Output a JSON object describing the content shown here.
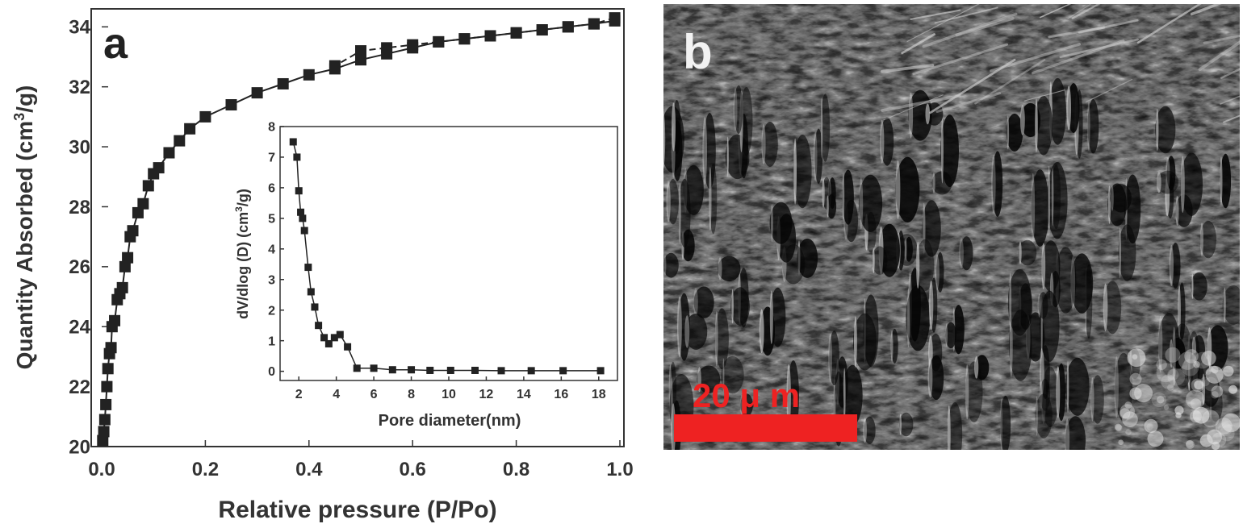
{
  "chart_data": [
    {
      "panel": "a",
      "type": "scatter",
      "xlabel": "Relative pressure (P/Po)",
      "ylabel": "Quantity Absorbed (cm3/g)",
      "ylabel_parts": [
        "Quantity Absorbed (cm",
        "3",
        "/g)"
      ],
      "xlim": [
        0.0,
        1.0
      ],
      "ylim": [
        20,
        34.6
      ],
      "xticks": [
        0.0,
        0.2,
        0.4,
        0.6,
        0.8,
        1.0
      ],
      "xtick_labels": [
        "0.0",
        "0.2",
        "0.4",
        "0.6",
        "0.8",
        "1.0"
      ],
      "yticks": [
        20,
        22,
        24,
        26,
        28,
        30,
        32,
        34
      ],
      "ytick_labels": [
        "20",
        "22",
        "24",
        "26",
        "28",
        "30",
        "32",
        "34"
      ],
      "grid": false,
      "colors": {
        "series": "#222222",
        "axis": "#333333"
      },
      "series": [
        {
          "role": "adsorption",
          "x": [
            0.002,
            0.004,
            0.006,
            0.008,
            0.01,
            0.012,
            0.015,
            0.018,
            0.02,
            0.025,
            0.03,
            0.035,
            0.04,
            0.045,
            0.05,
            0.055,
            0.06,
            0.07,
            0.08,
            0.09,
            0.1,
            0.11,
            0.13,
            0.15,
            0.17,
            0.2,
            0.25,
            0.3,
            0.35,
            0.4,
            0.45,
            0.5,
            0.55,
            0.6,
            0.65,
            0.7,
            0.75,
            0.8,
            0.85,
            0.9,
            0.95,
            0.99
          ],
          "y": [
            20.2,
            20.5,
            20.9,
            21.4,
            22.0,
            22.6,
            23.1,
            23.3,
            24.0,
            24.2,
            24.9,
            25.1,
            25.3,
            26.0,
            26.3,
            27.0,
            27.2,
            27.8,
            28.1,
            28.7,
            29.1,
            29.3,
            29.8,
            30.2,
            30.6,
            31.0,
            31.4,
            31.8,
            32.1,
            32.4,
            32.6,
            32.9,
            33.1,
            33.3,
            33.5,
            33.6,
            33.7,
            33.8,
            33.9,
            34.0,
            34.1,
            34.2
          ]
        },
        {
          "role": "desorption",
          "x": [
            0.99,
            0.95,
            0.9,
            0.85,
            0.8,
            0.75,
            0.7,
            0.65,
            0.6,
            0.55,
            0.5,
            0.45
          ],
          "y": [
            34.3,
            34.1,
            34.0,
            33.9,
            33.8,
            33.7,
            33.6,
            33.5,
            33.4,
            33.3,
            33.2,
            32.7
          ]
        }
      ]
    },
    {
      "panel": "a-inset",
      "type": "line",
      "xlabel": "Pore diameter(nm)",
      "ylabel": "dV/dlog (D) (cm3/g)",
      "ylabel_parts": [
        "dV/dlog (D) (cm",
        "3",
        "/g)"
      ],
      "xlim": [
        1,
        19
      ],
      "ylim": [
        -0.3,
        8
      ],
      "xticks": [
        2,
        4,
        6,
        8,
        10,
        12,
        14,
        16,
        18
      ],
      "xtick_labels": [
        "2",
        "4",
        "6",
        "8",
        "10",
        "12",
        "14",
        "16",
        "18"
      ],
      "yticks": [
        0,
        1,
        2,
        3,
        4,
        5,
        6,
        7,
        8
      ],
      "ytick_labels": [
        "0",
        "1",
        "2",
        "3",
        "4",
        "5",
        "6",
        "7",
        "8"
      ],
      "grid": false,
      "colors": {
        "series": "#222222"
      },
      "series": [
        {
          "x": [
            1.7,
            1.9,
            2.0,
            2.1,
            2.2,
            2.3,
            2.5,
            2.65,
            2.85,
            3.05,
            3.35,
            3.6,
            3.9,
            4.2,
            4.6,
            5.1,
            6.0,
            7.0,
            8.0,
            9.0,
            10.1,
            11.4,
            12.8,
            14.4,
            16.1,
            18.1
          ],
          "y": [
            7.5,
            7.0,
            5.9,
            5.2,
            5.0,
            4.6,
            3.4,
            2.6,
            2.1,
            1.5,
            1.1,
            0.9,
            1.1,
            1.2,
            0.8,
            0.1,
            0.1,
            0.05,
            0.05,
            0.03,
            0.03,
            0.03,
            0.02,
            0.02,
            0.02,
            0.02
          ]
        }
      ]
    }
  ],
  "panel_b": {
    "letter": "b",
    "scale_bar_label": "20 μ m",
    "colors": {
      "scale_bar": "#ee2222",
      "background": "#1c1c1c"
    }
  },
  "panel_a_letter": "a"
}
